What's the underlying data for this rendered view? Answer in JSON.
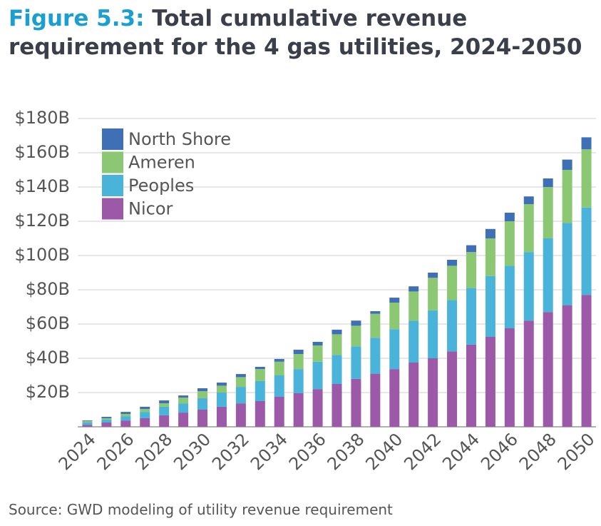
{
  "chart_data": {
    "type": "stacked_bar",
    "title_label": "Figure 5.3:",
    "title": "Total cumulative revenue requirement for the 4 gas utilities, 2024-2050",
    "source": "Source: GWD modeling of utility revenue requirement",
    "categories": [
      "2024",
      null,
      "2026",
      null,
      "2028",
      null,
      "2030",
      null,
      "2032",
      null,
      "2034",
      null,
      "2036",
      null,
      "2038",
      null,
      "2040",
      null,
      "2042",
      null,
      "2044",
      null,
      "2046",
      null,
      "2048",
      null,
      "2050"
    ],
    "series": [
      {
        "name": "Nicor",
        "color": "#9b59a8",
        "values": [
          1.2,
          2.5,
          3.7,
          5,
          6.7,
          8.3,
          10,
          11.7,
          13.7,
          15,
          17.5,
          19.6,
          22,
          25,
          28,
          31,
          33.7,
          37.5,
          40,
          44,
          48,
          52.5,
          57.5,
          62,
          67,
          71,
          77
        ]
      },
      {
        "name": "Peoples",
        "color": "#4ab3d9",
        "values": [
          1.3,
          1.7,
          2.5,
          3.7,
          5,
          5.4,
          6.7,
          8.3,
          9.6,
          11.7,
          12.5,
          14.1,
          16,
          17,
          19,
          21,
          23.3,
          24.5,
          28,
          30,
          33,
          35.5,
          36.5,
          40,
          43,
          48,
          51
        ]
      },
      {
        "name": "Ameren",
        "color": "#8cc873",
        "values": [
          0.8,
          0.8,
          1.3,
          1.7,
          2,
          3.3,
          4.1,
          4,
          5.7,
          7,
          8,
          8.8,
          9.5,
          12,
          12,
          14,
          15.5,
          17,
          19,
          20,
          21,
          22,
          26,
          28,
          30,
          31,
          34
        ]
      },
      {
        "name": "North Shore",
        "color": "#3f6fb5",
        "values": [
          0.4,
          0.8,
          1.2,
          1.3,
          1.7,
          1.3,
          1.7,
          1.8,
          1.8,
          1.3,
          1.6,
          2.5,
          2.1,
          2.7,
          3,
          1.5,
          2.9,
          3,
          3,
          3.5,
          4,
          5.5,
          5,
          4.5,
          5,
          6,
          7
        ]
      }
    ],
    "ylim": [
      0,
      180
    ],
    "yticks": [
      {
        "value": 20,
        "label": "$20B"
      },
      {
        "value": 40,
        "label": "$40B"
      },
      {
        "value": 60,
        "label": "$60B"
      },
      {
        "value": 80,
        "label": "$80B"
      },
      {
        "value": 100,
        "label": "$100B"
      },
      {
        "value": 120,
        "label": "$120B"
      },
      {
        "value": 140,
        "label": "$140B"
      },
      {
        "value": 160,
        "label": "$160B"
      },
      {
        "value": 180,
        "label": "$180B"
      }
    ],
    "grid": true,
    "legend": "top-left"
  }
}
